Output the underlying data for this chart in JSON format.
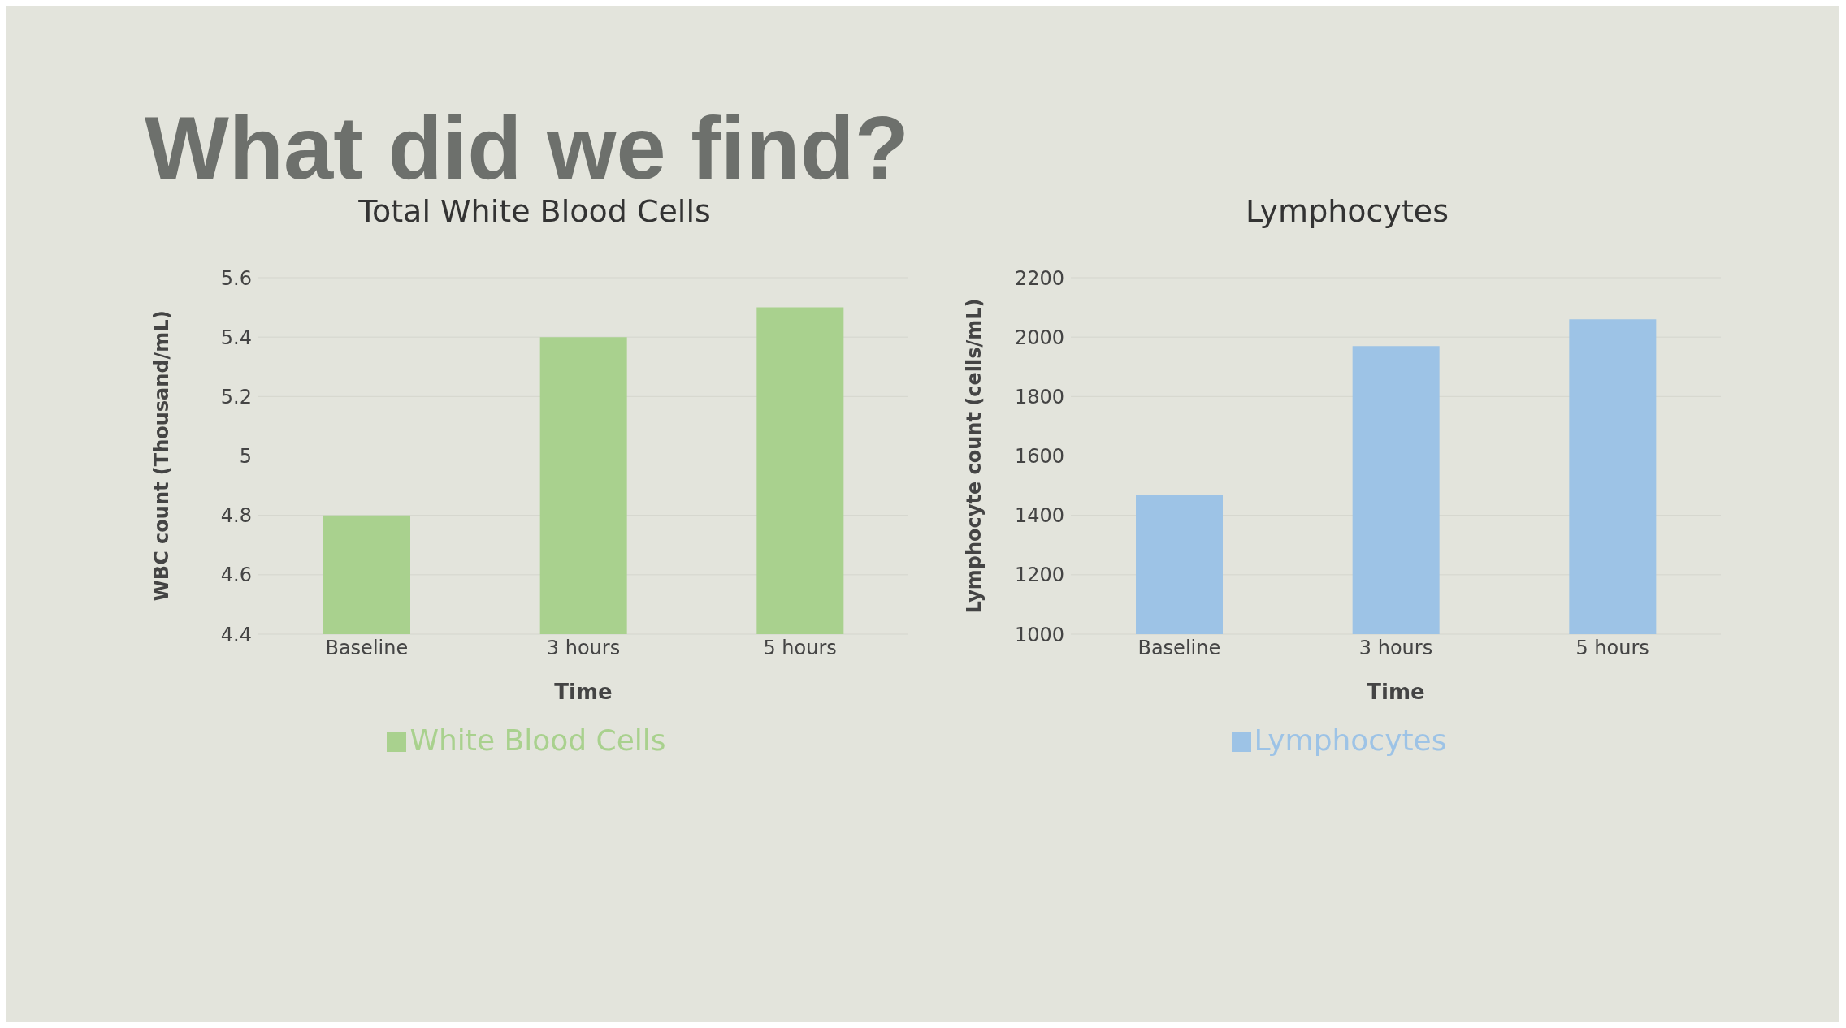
{
  "chart_data": [
    {
      "type": "bar",
      "title": "Total White Blood Cells",
      "annotations": [
        "What did we find?"
      ],
      "xlabel": "Time",
      "ylabel": "WBC count (Thousand/mL)",
      "categories": [
        "Baseline",
        "3 hours",
        "5 hours"
      ],
      "series": [
        {
          "name": "White Blood Cells",
          "color": "#a9d18e",
          "values": [
            4.8,
            5.4,
            5.5
          ]
        }
      ],
      "ylim": [
        4.4,
        5.6
      ],
      "yticks": [
        4.4,
        4.6,
        4.8,
        5,
        5.2,
        5.4,
        5.6
      ],
      "grid": "y",
      "legend": "bottom"
    },
    {
      "type": "bar",
      "title": "Lymphocytes",
      "xlabel": "Time",
      "ylabel": "Lymphocyte count (cells/mL)",
      "categories": [
        "Baseline",
        "3 hours",
        "5 hours"
      ],
      "series": [
        {
          "name": "Lymphocytes",
          "color": "#9dc3e6",
          "values": [
            1470,
            1970,
            2060
          ]
        }
      ],
      "ylim": [
        1000,
        2200
      ],
      "yticks": [
        1000,
        1200,
        1400,
        1600,
        1800,
        2000,
        2200
      ],
      "grid": "y",
      "legend": "bottom"
    }
  ]
}
